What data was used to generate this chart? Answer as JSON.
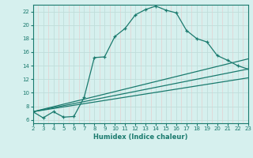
{
  "xlabel": "Humidex (Indice chaleur)",
  "bg_color": "#d6f0ee",
  "grid_color": "#c0deda",
  "line_color": "#1a7a6e",
  "xlim": [
    2,
    23
  ],
  "ylim": [
    5.5,
    23
  ],
  "xticks": [
    2,
    3,
    4,
    5,
    6,
    7,
    8,
    9,
    10,
    11,
    12,
    13,
    14,
    15,
    16,
    17,
    18,
    19,
    20,
    21,
    22,
    23
  ],
  "yticks": [
    6,
    8,
    10,
    12,
    14,
    16,
    18,
    20,
    22
  ],
  "main_x": [
    2,
    3,
    4,
    5,
    6,
    7,
    8,
    9,
    10,
    11,
    12,
    13,
    14,
    15,
    16,
    17,
    18,
    19,
    20,
    21,
    22,
    23
  ],
  "main_y": [
    7.2,
    6.3,
    7.2,
    6.4,
    6.5,
    9.3,
    15.2,
    15.3,
    18.3,
    19.5,
    21.5,
    22.3,
    22.8,
    22.2,
    21.8,
    19.2,
    18.0,
    17.5,
    15.5,
    14.8,
    14.0,
    13.5
  ],
  "line1_x": [
    2,
    23
  ],
  "line1_y": [
    7.2,
    15.0
  ],
  "line2_x": [
    2,
    23
  ],
  "line2_y": [
    7.2,
    13.5
  ],
  "line3_x": [
    2,
    23
  ],
  "line3_y": [
    7.2,
    12.2
  ]
}
